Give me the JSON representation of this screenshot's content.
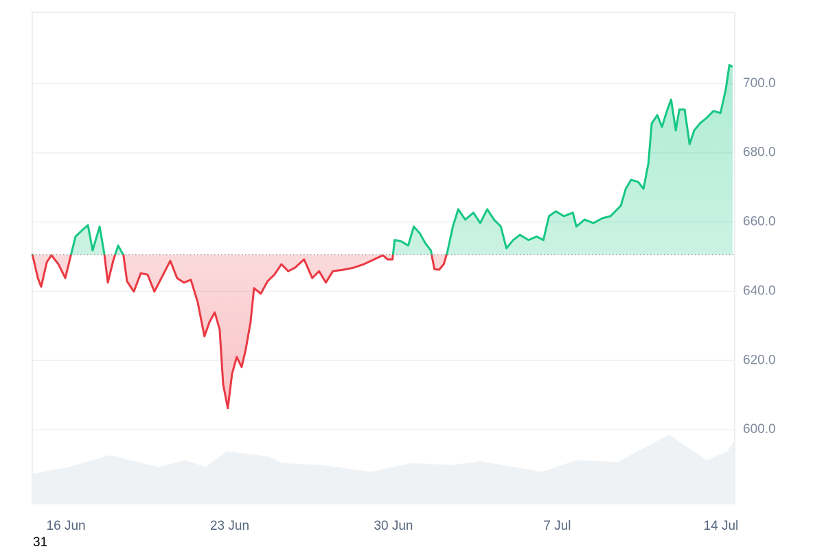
{
  "chart_data": {
    "type": "line",
    "x": [
      -1.44,
      -1.2,
      -1.06,
      -0.82,
      -0.62,
      -0.32,
      -0.03,
      0.21,
      0.41,
      0.7,
      0.94,
      1.14,
      1.44,
      1.64,
      1.79,
      2.02,
      2.23,
      2.46,
      2.61,
      2.9,
      3.2,
      3.49,
      3.78,
      4.08,
      4.46,
      4.75,
      5.04,
      5.34,
      5.63,
      5.92,
      6.13,
      6.36,
      6.57,
      6.72,
      6.92,
      7.1,
      7.3,
      7.51,
      7.68,
      7.89,
      8.04,
      8.33,
      8.62,
      8.91,
      9.21,
      9.5,
      9.79,
      10.18,
      10.53,
      10.82,
      11.11,
      11.41,
      11.85,
      12.29,
      12.73,
      13.17,
      13.55,
      13.75,
      13.96,
      14.05,
      14.34,
      14.63,
      14.87,
      15.13,
      15.37,
      15.6,
      15.75,
      15.95,
      16.15,
      16.3,
      16.54,
      16.77,
      17.07,
      17.42,
      17.71,
      18.01,
      18.3,
      18.59,
      18.83,
      19.12,
      19.41,
      19.77,
      20.12,
      20.41,
      20.65,
      20.94,
      21.29,
      21.67,
      21.82,
      22.17,
      22.55,
      22.93,
      23.28,
      23.72,
      23.93,
      24.16,
      24.46,
      24.69,
      24.9,
      25.04,
      25.28,
      25.48,
      25.69,
      25.87,
      26.07,
      26.22,
      26.45,
      26.66,
      26.86,
      27.1,
      27.39,
      27.68,
      27.98,
      28.21,
      28.36,
      28.5
    ],
    "series": [
      {
        "values": [
          650.8,
          643.8,
          641.3,
          648.4,
          650.4,
          647.8,
          643.8,
          650.4,
          655.8,
          657.7,
          659.1,
          651.8,
          658.7,
          650.8,
          642.5,
          648.8,
          653.2,
          650.4,
          642.9,
          639.9,
          645.2,
          644.8,
          639.9,
          643.8,
          648.8,
          643.8,
          642.5,
          643.3,
          636.9,
          627.0,
          631.0,
          633.9,
          629.0,
          613.1,
          606.2,
          616.1,
          621.0,
          618.1,
          623.0,
          631.0,
          640.9,
          639.3,
          642.9,
          644.8,
          647.8,
          645.8,
          646.8,
          649.2,
          643.8,
          645.8,
          642.5,
          645.8,
          646.2,
          646.8,
          647.8,
          649.2,
          650.4,
          649.2,
          649.2,
          654.8,
          654.4,
          653.2,
          658.7,
          656.7,
          653.8,
          651.8,
          646.4,
          646.2,
          647.8,
          651.2,
          658.7,
          663.7,
          660.7,
          662.7,
          659.7,
          663.7,
          660.7,
          658.7,
          652.4,
          654.8,
          656.3,
          654.8,
          655.8,
          654.8,
          661.7,
          663.1,
          661.7,
          662.7,
          658.7,
          660.7,
          659.7,
          661.1,
          661.7,
          664.7,
          669.6,
          672.2,
          671.6,
          669.6,
          677.0,
          688.5,
          690.9,
          687.5,
          692.1,
          695.4,
          686.5,
          692.5,
          692.5,
          682.5,
          686.5,
          688.5,
          690.1,
          692.1,
          691.5,
          698.4,
          705.4,
          704.8
        ]
      }
    ],
    "baseline": 650.6,
    "up_color": "#16c784",
    "down_color": "#ea3943",
    "xlim": [
      -1.44,
      28.59
    ],
    "xticks": [
      {
        "value": 0,
        "label": "16 Jun"
      },
      {
        "value": 7,
        "label": "23 Jun"
      },
      {
        "value": 14,
        "label": "30 Jun"
      },
      {
        "value": 21,
        "label": "7 Jul"
      },
      {
        "value": 28,
        "label": "14 Jul"
      }
    ],
    "ylim": [
      578.4,
      720.6
    ],
    "yticks": [
      {
        "value": 600,
        "label": "600.0"
      },
      {
        "value": 620,
        "label": "620.0"
      },
      {
        "value": 640,
        "label": "640.0"
      },
      {
        "value": 660,
        "label": "660.0"
      },
      {
        "value": 680,
        "label": "680.0"
      },
      {
        "value": 700,
        "label": "700.0"
      }
    ],
    "grid": true,
    "volume": {
      "x": [
        -1.44,
        0.12,
        1.88,
        3.93,
        5.1,
        5.98,
        6.86,
        8.62,
        9.21,
        10.97,
        13.02,
        14.78,
        16.54,
        17.71,
        20.35,
        21.82,
        23.58,
        25.78,
        27.39,
        28.27,
        28.56
      ],
      "values": [
        31,
        38,
        50,
        38,
        45,
        38,
        54,
        49,
        42,
        40,
        33,
        42,
        40,
        44,
        33,
        45,
        43,
        71,
        45,
        54,
        64
      ],
      "color": "#eff2f5"
    },
    "y2lim": [
      0,
      500
    ],
    "corner_text": "31"
  }
}
